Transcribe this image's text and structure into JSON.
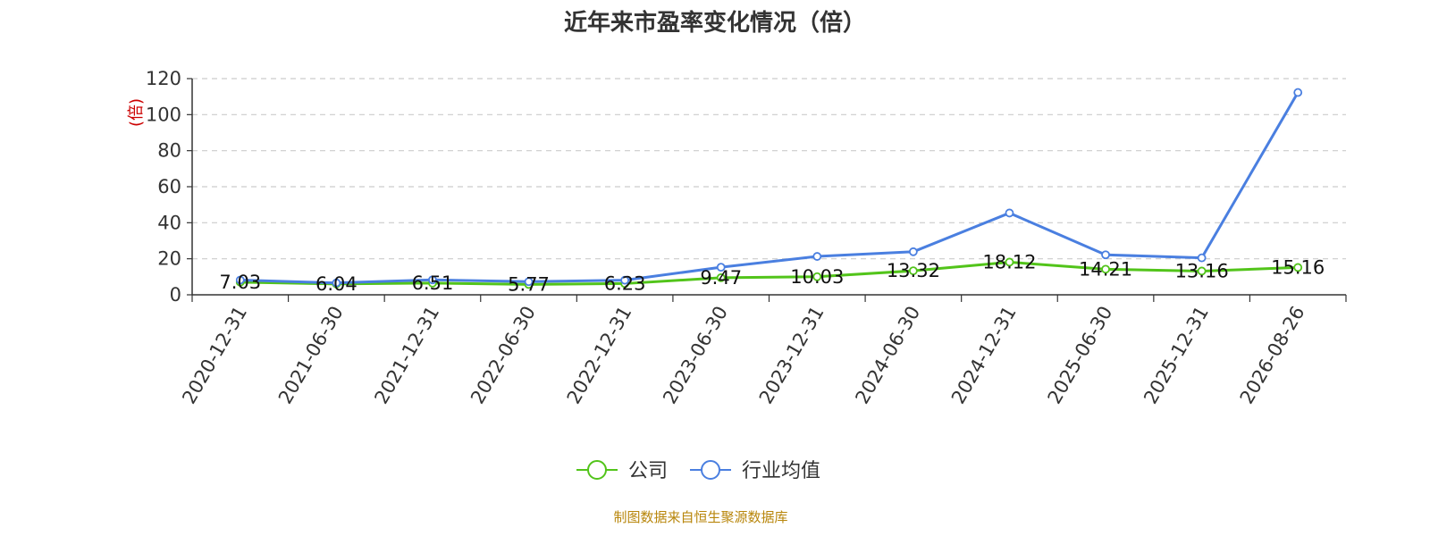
{
  "chart_data": {
    "type": "line",
    "title": "近年来市盈率变化情况（倍）",
    "ylabel": "(倍)",
    "xlabel": "",
    "ylim": [
      0,
      120
    ],
    "yticks": [
      0,
      20,
      40,
      60,
      80,
      100,
      120
    ],
    "grid": true,
    "legend_position": "bottom",
    "categories": [
      "2020-12-31",
      "2021-06-30",
      "2021-12-31",
      "2022-06-30",
      "2022-12-31",
      "2023-06-30",
      "2023-12-31",
      "2024-06-30",
      "2024-12-31",
      "2025-06-30",
      "2025-12-31",
      "2026-08-26"
    ],
    "series": [
      {
        "name": "公司",
        "color": "#52c41a",
        "values": [
          7.03,
          6.04,
          6.51,
          5.77,
          6.23,
          9.47,
          10.03,
          13.32,
          18.12,
          14.21,
          13.16,
          15.16
        ],
        "labels": [
          "7.03",
          "6.04",
          "6.51",
          "5.77",
          "6.23",
          "9.47",
          "10.03",
          "13.32",
          "18.12",
          "14.21",
          "13.16",
          "15.16"
        ]
      },
      {
        "name": "行业均值",
        "color": "#4a7fe0",
        "values": [
          8.2,
          6.6,
          8.3,
          7.3,
          8.1,
          15.3,
          21.3,
          23.9,
          45.4,
          22.2,
          20.5,
          112.3
        ]
      }
    ],
    "source": "制图数据来自恒生聚源数据库"
  }
}
